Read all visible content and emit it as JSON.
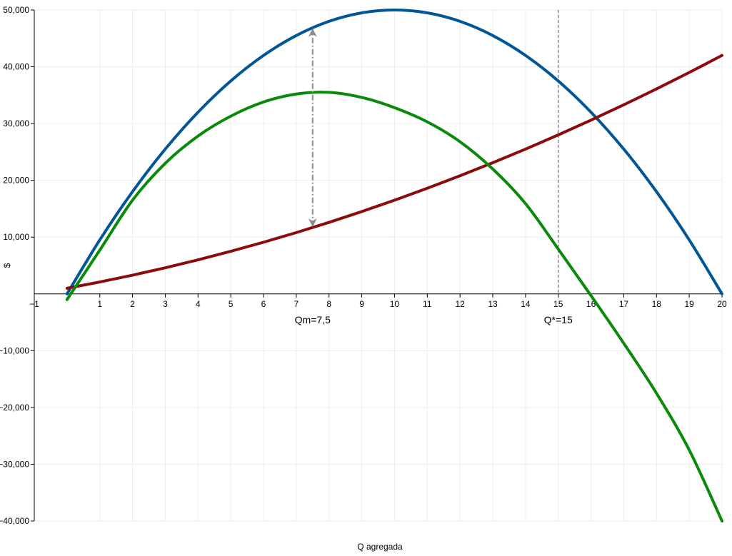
{
  "chart_data": {
    "type": "line",
    "x_label": "Q agregada",
    "y_label": "$",
    "x": [
      0,
      1,
      2,
      3,
      4,
      5,
      6,
      7,
      8,
      9,
      10,
      11,
      12,
      13,
      14,
      15,
      16,
      17,
      18,
      19,
      20
    ],
    "series": [
      {
        "color": "#005696",
        "values": [
          0,
          9500,
          18000,
          25500,
          32000,
          37500,
          42000,
          45500,
          48000,
          49500,
          50000,
          49500,
          48000,
          45500,
          42000,
          37500,
          32000,
          25500,
          18000,
          9500,
          0
        ]
      },
      {
        "color": "#8b0a0a",
        "values": [
          1000,
          2100,
          3300,
          4600,
          6000,
          7500,
          9100,
          10800,
          12600,
          14500,
          16500,
          18600,
          20800,
          23100,
          25500,
          28000,
          30600,
          33300,
          36100,
          39000,
          42000
        ]
      },
      {
        "color": "#0a8a0a",
        "values": [
          -1000,
          7700,
          16500,
          23000,
          27800,
          31300,
          33800,
          35200,
          35500,
          34600,
          32800,
          30300,
          26800,
          22000,
          15900,
          7900,
          -300,
          -8700,
          -17500,
          -27500,
          -40000
        ]
      }
    ],
    "xlim": [
      -1,
      20
    ],
    "ylim": [
      -40000,
      50000
    ],
    "xticks": [
      {
        "value": -1,
        "label": "−1"
      },
      1,
      2,
      3,
      4,
      5,
      6,
      7,
      8,
      9,
      10,
      11,
      12,
      13,
      14,
      15,
      16,
      17,
      18,
      19,
      20
    ],
    "yticks": [
      {
        "value": 50000,
        "label": "50,000"
      },
      {
        "value": 40000,
        "label": "40,000"
      },
      {
        "value": 30000,
        "label": "30,000"
      },
      {
        "value": 20000,
        "label": "20,000"
      },
      {
        "value": 10000,
        "label": "10,000"
      },
      {
        "value": -10000,
        "label": "−10,000"
      },
      {
        "value": -20000,
        "label": "−20,000"
      },
      {
        "value": -30000,
        "label": "−30,000"
      },
      {
        "value": -40000,
        "label": "−40,000"
      }
    ],
    "grid": true,
    "annotations": [
      {
        "text": "Qm=7,5",
        "x": 7.5
      },
      {
        "text": "Q*=15",
        "x": 15
      }
    ],
    "vline": {
      "x": 15
    },
    "arrow": {
      "x": 7.5,
      "y_top": 46875,
      "y_bottom": 11688
    }
  }
}
